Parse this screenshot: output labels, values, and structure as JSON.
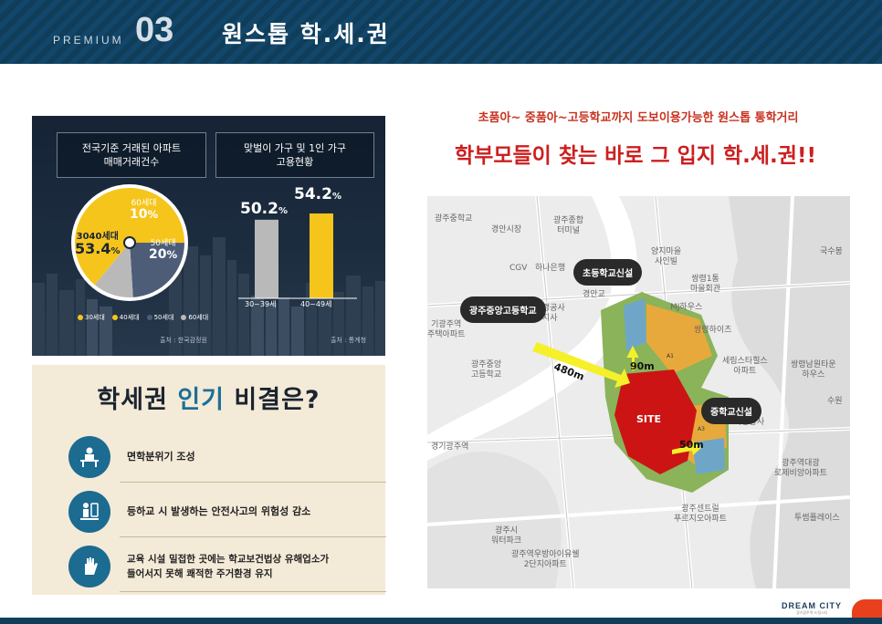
{
  "header": {
    "premium": "PREMIUM",
    "number": "03",
    "title": "원스톱 학.세.권"
  },
  "infographic": {
    "box1_title": "전국기준 거래된 아파트\n매매거래건수",
    "box2_title": "맞벌이 가구 및 1인 가구\n고용현황",
    "pie": {
      "main_label": "3040세대",
      "main_value": "53.4",
      "s60_label": "60세대",
      "s60_value": "10",
      "s50_label": "50세대",
      "s50_value": "20",
      "pct": "%"
    },
    "bars": {
      "v1": "50.2",
      "v2": "54.2",
      "pct": "%",
      "l1": "30~39세",
      "l2": "40~49세"
    },
    "legend": [
      "30세대",
      "40세대",
      "50세대",
      "60세대"
    ],
    "source1": "출처 : 한국감정원",
    "source2": "출처 : 통계청",
    "colors": {
      "yellow": "#f6c51b",
      "slate": "#4d5d78",
      "gray": "#b9b9b9"
    }
  },
  "chart_data": [
    {
      "type": "pie",
      "title": "전국기준 거래된 아파트 매매거래건수",
      "categories": [
        "3040세대",
        "50세대",
        "60세대"
      ],
      "values": [
        53.4,
        20,
        10
      ],
      "legend": [
        "30세대",
        "40세대",
        "50세대",
        "60세대"
      ]
    },
    {
      "type": "bar",
      "title": "맞벌이 가구 및 1인 가구 고용현황",
      "categories": [
        "30~39세",
        "40~49세"
      ],
      "values": [
        50.2,
        54.2
      ],
      "ylim": [
        0,
        60
      ]
    }
  ],
  "tips": {
    "title_a": "학세권 ",
    "title_hl": "인기",
    "title_b": " 비결은?",
    "items": [
      {
        "text": "면학분위기 조성"
      },
      {
        "text": "등하교 시 발생하는 안전사고의 위험성 감소"
      },
      {
        "text": "교육 시설 밀접한 곳에는 학교보건법상 유해업소가\n들어서지 못해 쾌적한 주거환경 유지"
      }
    ]
  },
  "right": {
    "subtitle": "초품아~ 중품아~고등학교까지 도보이용가능한 원스톱 통학거리",
    "headline": "학부모들이 찾는 바로 그 입지 학.세.권!!"
  },
  "map": {
    "bubbles": {
      "high": "광주중앙고등학교",
      "elem": "초등학교신설",
      "middle": "중학교신설"
    },
    "distances": {
      "high": "480m",
      "elem": "90m",
      "middle": "50m"
    },
    "site": "SITE",
    "plots": {
      "a1": "A1",
      "a3": "A3"
    },
    "labels": [
      "광주중학교",
      "경안시장",
      "광주종합\n터미널",
      "CGV",
      "하나은행",
      "양지마을\n사인빌",
      "쌍령1통\n마을회관",
      "MJ하우스",
      "쌍령하이츠",
      "기광주역\n주택아파트",
      "광주중앙\n고등학교",
      "세림스타힐스\n아파트",
      "쌍령남원타운\n하우스",
      "국수봉",
      "수원",
      "짜장방사",
      "광주역대광\n로제비앙아파트",
      "경기광주역",
      "광주센트럴\n푸르지오아파트",
      "투썸플레이스",
      "광주시\n워터파크",
      "광주역우방아이유쉘\n2단지아파트",
      "경안교",
      "경공사\n지사"
    ]
  },
  "footer": {
    "logo": "DREAM CITY",
    "logo_sub": "경기광주역 드림시티"
  }
}
